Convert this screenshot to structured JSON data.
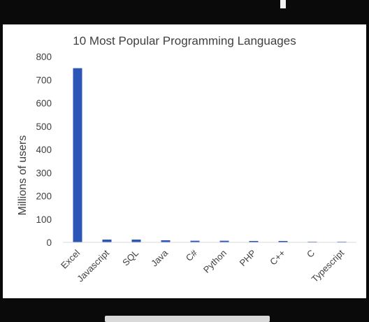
{
  "chart_data": {
    "type": "bar",
    "title": "10 Most Popular Programming Languages",
    "ylabel": "Millions of users",
    "xlabel": "",
    "ylim": [
      0,
      800
    ],
    "yticks": [
      0,
      100,
      200,
      300,
      400,
      500,
      600,
      700,
      800
    ],
    "categories": [
      "Excel",
      "Javascript",
      "SQL",
      "Java",
      "C#",
      "Python",
      "PHP",
      "C++",
      "C",
      "Typescript"
    ],
    "values": [
      750,
      12,
      12,
      9,
      7,
      7,
      6,
      6,
      3,
      3
    ],
    "grid": false,
    "legend": "none",
    "bar_color": "#2b56b8"
  }
}
